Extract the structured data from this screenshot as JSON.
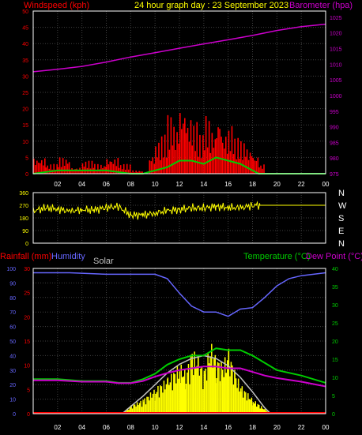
{
  "header": {
    "left_label": "Windspeed (kph)",
    "title": "24 hour graph day : 23 September 2023",
    "right_label": "Barometer (hpa)"
  },
  "lower_header": {
    "rainfall_label": "Rainfall (mm)",
    "humidity_label": "Humidity",
    "solar_label": "Solar",
    "temperature_label": "Temperature (°C)",
    "dewpoint_label": "Dew Point (°C)"
  },
  "x_ticks": [
    "02",
    "04",
    "06",
    "08",
    "10",
    "12",
    "14",
    "16",
    "18",
    "20",
    "22",
    "00"
  ],
  "colors": {
    "wind": "#ff0000",
    "gust_area": "#ff0000",
    "avg_wind": "#00cc00",
    "barometer": "#cc00cc",
    "direction": "#ffff00",
    "humidity": "#6666ff",
    "solar": "#ffff00",
    "solar_max": "#c0c0c0",
    "temperature": "#00cc00",
    "dewpoint": "#cc00cc",
    "rain": "#ff0000",
    "grid": "#404040",
    "axis": "#ffffff"
  },
  "chart_data": [
    {
      "type": "line",
      "title": "24 hour graph day : 23 September 2023",
      "ylabel": "Windspeed (kph)",
      "y2label": "Barometer (hpa)",
      "ylim": [
        0,
        50
      ],
      "y2lim": [
        975,
        1027
      ],
      "y_ticks": [
        0,
        5,
        10,
        15,
        20,
        25,
        30,
        35,
        40,
        45,
        50
      ],
      "y2_ticks": [
        975,
        980,
        985,
        990,
        995,
        1000,
        1005,
        1010,
        1015,
        1020,
        1025
      ],
      "x_hours": [
        0,
        24
      ],
      "series": [
        {
          "name": "Barometer (hpa)",
          "x": [
            0,
            2,
            4,
            6,
            8,
            10,
            12,
            14,
            16,
            18,
            20,
            22,
            24
          ],
          "values": [
            1007.6,
            1008.4,
            1009.3,
            1010.7,
            1012.3,
            1013.7,
            1015.1,
            1016.5,
            1017.8,
            1019.2,
            1020.8,
            1022.0,
            1022.8
          ]
        },
        {
          "name": "Windspeed (kph)",
          "x": [
            0,
            1,
            2,
            3,
            4,
            5,
            6,
            7,
            8,
            9,
            9.5,
            10,
            10.5,
            11,
            11.5,
            12,
            12.5,
            13,
            13.5,
            14,
            14.5,
            15,
            15.5,
            16,
            16.5,
            17,
            17.5,
            18,
            18.5,
            19,
            20,
            22,
            24
          ],
          "values": [
            5,
            3,
            5,
            2,
            4,
            3,
            5,
            3,
            1,
            0,
            6,
            10,
            12,
            18,
            15,
            22,
            18,
            16,
            12,
            18,
            14,
            19,
            13,
            15,
            11,
            10,
            8,
            6,
            3,
            0,
            0,
            0,
            0
          ]
        },
        {
          "name": "Average wind",
          "x": [
            0,
            2,
            4,
            6,
            8,
            9,
            10,
            11,
            12,
            13,
            14,
            15,
            16,
            17,
            18,
            18.5,
            19,
            24
          ],
          "values": [
            0,
            1,
            1,
            1,
            0,
            0,
            1,
            2,
            4,
            4,
            3,
            5,
            4,
            3,
            1,
            0,
            0,
            0
          ]
        }
      ]
    },
    {
      "type": "line",
      "title": "",
      "ylim": [
        0,
        360
      ],
      "y_ticks": [
        0,
        90,
        180,
        270,
        360
      ],
      "y2_ticks": [
        "N",
        "W",
        "S",
        "E",
        "N"
      ],
      "series": [
        {
          "name": "Wind direction",
          "x": [
            0,
            1,
            2,
            3,
            4,
            5,
            6,
            7,
            8,
            9,
            10,
            11,
            12,
            13,
            14,
            15,
            16,
            17,
            18,
            18.6,
            24
          ],
          "values": [
            230,
            250,
            245,
            225,
            240,
            235,
            255,
            260,
            200,
            200,
            215,
            230,
            240,
            250,
            250,
            260,
            255,
            250,
            270,
            270,
            270
          ]
        }
      ]
    },
    {
      "type": "line",
      "title": "",
      "ylabel": "Rainfall (mm)",
      "y2label": "Temperature (°C)",
      "ylim": [
        0,
        100
      ],
      "y_ticks": [
        0,
        10,
        20,
        30,
        40,
        50,
        60,
        70,
        80,
        90,
        100
      ],
      "rain_ticks": [
        0,
        5,
        10,
        15,
        20,
        25,
        30
      ],
      "y2lim": [
        0,
        40
      ],
      "y2_ticks": [
        0,
        5,
        10,
        15,
        20,
        25,
        30,
        35,
        40
      ],
      "series": [
        {
          "name": "Humidity",
          "x": [
            0,
            3,
            6,
            8,
            10,
            11,
            12,
            13,
            14,
            15,
            16,
            17,
            18,
            19,
            20,
            21,
            22,
            23,
            24
          ],
          "values": [
            97,
            97,
            96,
            96,
            96,
            93,
            83,
            74,
            70,
            70,
            67,
            72,
            73,
            80,
            88,
            93,
            95,
            96,
            97
          ]
        },
        {
          "name": "Temperature (°C)",
          "x": [
            0,
            2,
            4,
            6,
            7,
            8,
            9,
            10,
            11,
            12,
            13,
            14,
            15,
            16,
            17,
            18,
            19,
            20,
            22,
            24
          ],
          "values": [
            9.5,
            9.5,
            9,
            9,
            8.5,
            8.5,
            9.5,
            11,
            13.5,
            15,
            16,
            16,
            18,
            17.5,
            17.5,
            16,
            14,
            12,
            10.5,
            8.5
          ]
        },
        {
          "name": "Dew Point (°C)",
          "x": [
            0,
            2,
            4,
            6,
            7,
            8,
            9,
            10,
            11,
            12,
            13,
            14,
            15,
            16,
            17,
            18,
            19,
            20,
            22,
            24
          ],
          "values": [
            9.2,
            9.2,
            8.8,
            8.8,
            8.4,
            8.4,
            9,
            10.2,
            11.2,
            12,
            12.5,
            13,
            13,
            12.5,
            12.5,
            11.5,
            10.5,
            9.8,
            8.8,
            7.5
          ]
        },
        {
          "name": "Solar",
          "x": [
            7.5,
            8,
            9,
            10,
            11,
            12,
            12.5,
            13,
            13.5,
            14,
            14.5,
            15,
            15.5,
            16,
            16.5,
            17,
            18,
            19,
            19.5
          ],
          "values": [
            2,
            6,
            10,
            18,
            25,
            35,
            30,
            45,
            40,
            30,
            50,
            40,
            35,
            45,
            30,
            20,
            10,
            3,
            0
          ]
        },
        {
          "name": "Solar max",
          "x": [
            7.3,
            8,
            9,
            10,
            11,
            12,
            13,
            14,
            15,
            16,
            17,
            18,
            19,
            19.5
          ],
          "values": [
            0,
            5,
            12,
            20,
            28,
            34,
            38,
            40,
            38,
            33,
            25,
            15,
            4,
            0
          ]
        },
        {
          "name": "Rainfall (mm)",
          "x": [
            0,
            24
          ],
          "values": [
            0,
            0
          ]
        }
      ]
    }
  ]
}
